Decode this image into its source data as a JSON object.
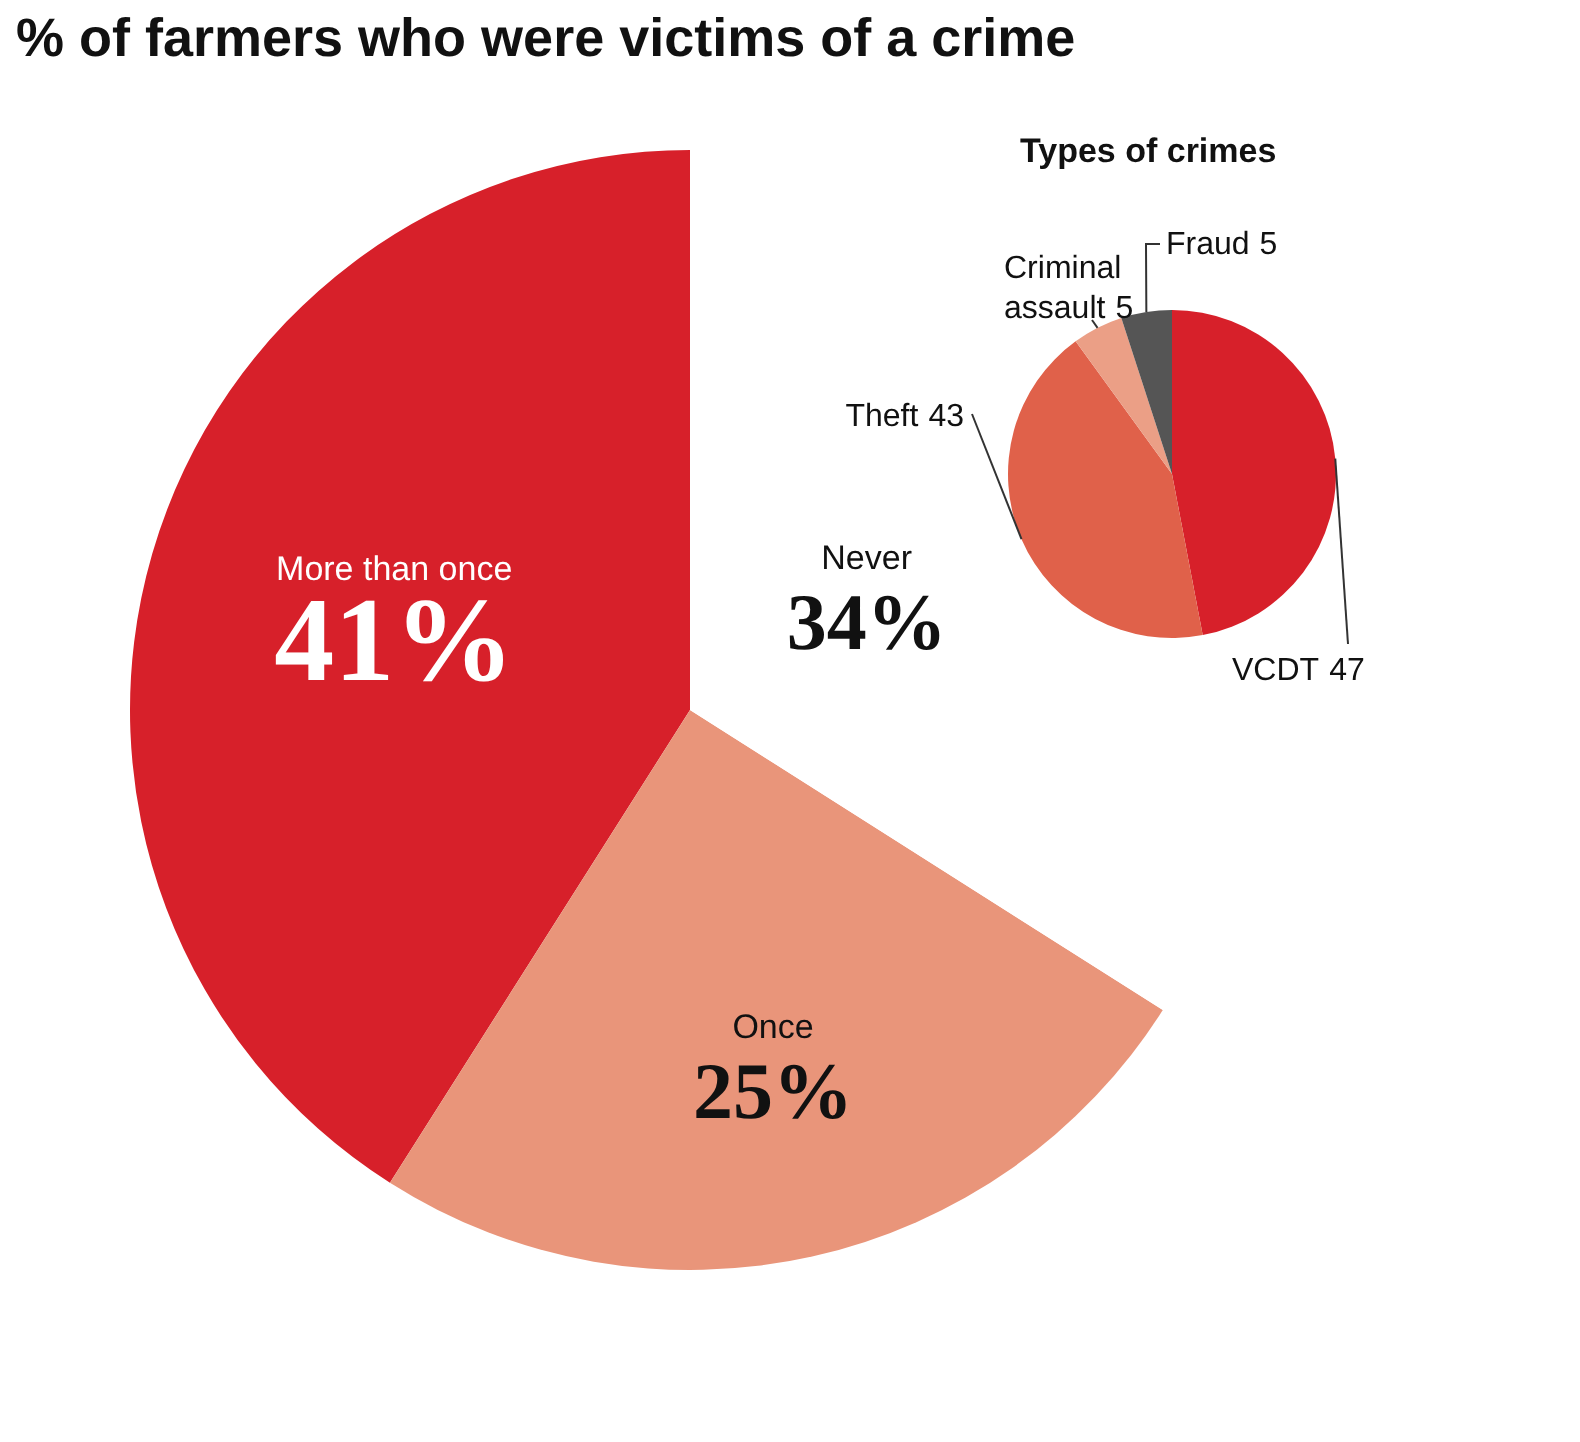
{
  "chart_data": [
    {
      "type": "pie",
      "title": "% of farmers who were victims of a crime",
      "categories": [
        "More than once",
        "Once",
        "Never"
      ],
      "values": [
        41,
        25,
        34
      ],
      "colors": [
        "#d7202a",
        "#e9957a",
        "#ffffff"
      ],
      "value_labels": [
        "41%",
        "25%",
        "34%"
      ]
    },
    {
      "type": "pie",
      "title": "Types of crimes",
      "categories": [
        "VCDT",
        "Theft",
        "Criminal assault",
        "Fraud"
      ],
      "values": [
        47,
        43,
        5,
        5
      ],
      "colors": [
        "#d7202a",
        "#e0614a",
        "#eb9f86",
        "#555555"
      ],
      "data_labels": true
    }
  ]
}
